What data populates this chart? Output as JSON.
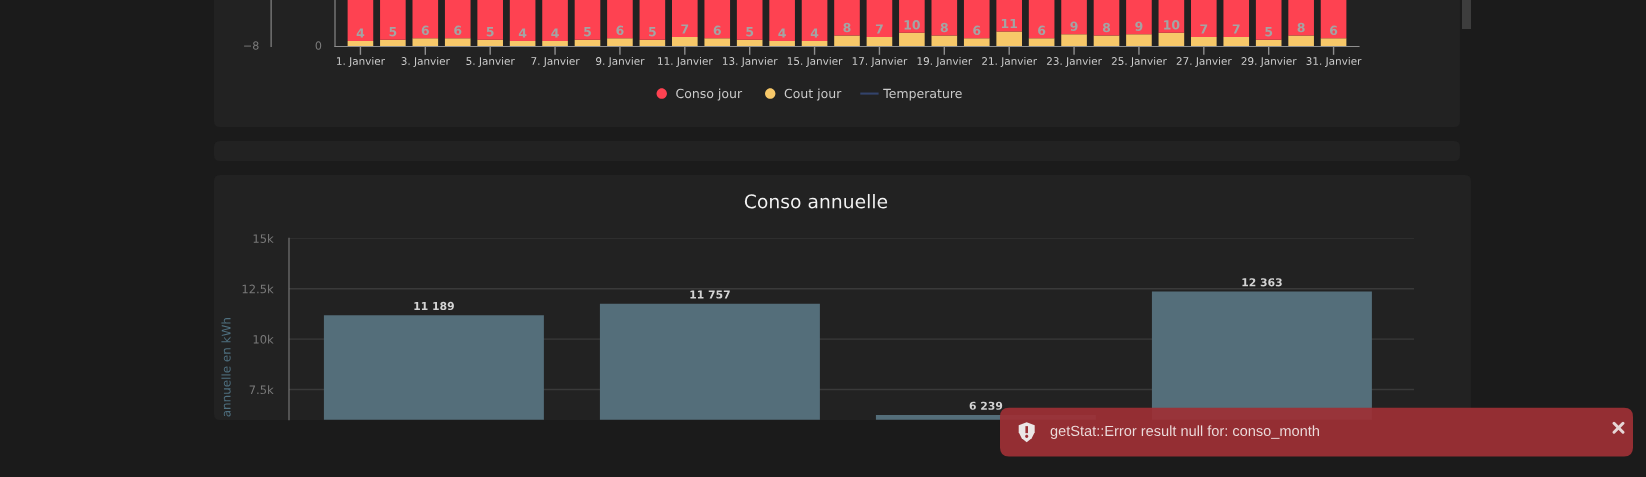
{
  "chart_data": [
    {
      "type": "bar",
      "stacked": true,
      "categories": [
        "1. Janvier",
        null,
        "3. Janvier",
        null,
        "5. Janvier",
        null,
        "7. Janvier",
        null,
        "9. Janvier",
        null,
        "11. Janvier",
        null,
        "13. Janvier",
        null,
        "15. Janvier",
        null,
        "17. Janvier",
        null,
        "19. Janvier",
        null,
        "21. Janvier",
        null,
        "23. Janvier",
        null,
        "25. Janvier",
        null,
        "27. Janvier",
        null,
        "29. Janvier",
        null,
        "31. Janvier"
      ],
      "series": [
        {
          "name": "Cout jour",
          "color": "#f7c869",
          "values": [
            4,
            5,
            6,
            6,
            5,
            4,
            4,
            5,
            6,
            5,
            7,
            6,
            5,
            4,
            4,
            8,
            7,
            10,
            8,
            6,
            11,
            6,
            9,
            8,
            9,
            10,
            7,
            7,
            5,
            8,
            6
          ],
          "value_labels": [
            "4",
            "5",
            "6",
            "6",
            "5",
            "4",
            "4",
            "5",
            "6",
            "5",
            "7",
            "6",
            "5",
            "4",
            "4",
            "8",
            "7",
            "10",
            "8",
            "6",
            "11",
            "6",
            "9",
            "8",
            "9",
            "10",
            "7",
            "7",
            "5",
            "8",
            "6"
          ]
        },
        {
          "name": "Conso jour",
          "color": "#fe4251",
          "values": [
            30,
            29,
            28,
            28,
            29,
            30,
            30,
            29,
            28,
            29,
            27,
            28,
            29,
            30,
            30,
            26,
            27,
            24,
            26,
            28,
            23,
            28,
            25,
            26,
            25,
            24,
            27,
            27,
            29,
            26,
            28
          ]
        },
        {
          "name": "Temperature",
          "type": "line",
          "axis": "y2",
          "color": "#33436b",
          "values": [
            null,
            null,
            null,
            null,
            null,
            null,
            null,
            null,
            null,
            null,
            null,
            null,
            null,
            null,
            null,
            null,
            null,
            null,
            null,
            null,
            null,
            null,
            null,
            null,
            null,
            null,
            null,
            null,
            null,
            null,
            null
          ]
        }
      ],
      "ylim": [
        0,
        34
      ],
      "legend": "bottom",
      "annotations": [
        "0",
        "−8"
      ]
    },
    {
      "type": "bar",
      "title": "Conso annuelle",
      "ylabel": "annuelle en kWh",
      "categories": [
        null,
        null,
        null,
        null
      ],
      "series": [
        {
          "color": "#546e7a",
          "values": [
            11189,
            11757,
            6239,
            12363
          ],
          "value_labels": [
            "11 189",
            "11 757",
            "6 239",
            "12 363"
          ]
        }
      ],
      "ylim": [
        6000,
        15000
      ],
      "yticks": [
        {
          "value": 7500,
          "label": "7.5k"
        },
        {
          "value": 10000,
          "label": "10k"
        },
        {
          "value": 12500,
          "label": "12.5k"
        },
        {
          "value": 15000,
          "label": "15k"
        }
      ],
      "grid": "y",
      "annotations": [
        "getStat::Error result null for: conso_month"
      ]
    }
  ]
}
